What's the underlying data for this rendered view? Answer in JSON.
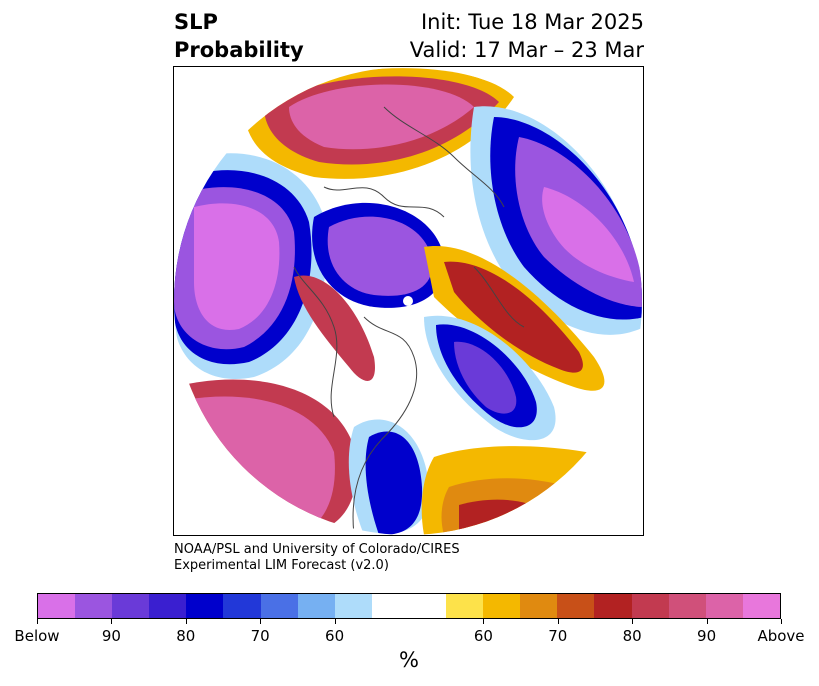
{
  "title": {
    "variable_line1": "SLP",
    "variable_line2": "Probability",
    "init": "Init: Tue 18 Mar 2025",
    "valid": "Valid: 17 Mar – 23 Mar"
  },
  "credit": {
    "line1": "NOAA/PSL and University of Colorado/CIRES",
    "line2": "Experimental LIM Forecast (v2.0)"
  },
  "colorbar": {
    "unit": "%",
    "colors": [
      "#d970e8",
      "#9b55e0",
      "#6a3ad8",
      "#3a1fd0",
      "#0000cc",
      "#2238d8",
      "#4a70e6",
      "#76b0f2",
      "#aedcfa",
      "#ffffff",
      "#ffffff",
      "#fde24a",
      "#f4b800",
      "#e08a10",
      "#c85018",
      "#b22222",
      "#c23a50",
      "#d0507a",
      "#dc63a8",
      "#e877dc"
    ],
    "tick_labels": [
      "Below",
      "90",
      "80",
      "70",
      "60",
      "60",
      "70",
      "80",
      "90",
      "Above"
    ]
  },
  "palette": {
    "below_high": "#d970e8",
    "below_mid": "#0000cc",
    "above_mid": "#f4b800",
    "above_high": "#dc63a8"
  }
}
